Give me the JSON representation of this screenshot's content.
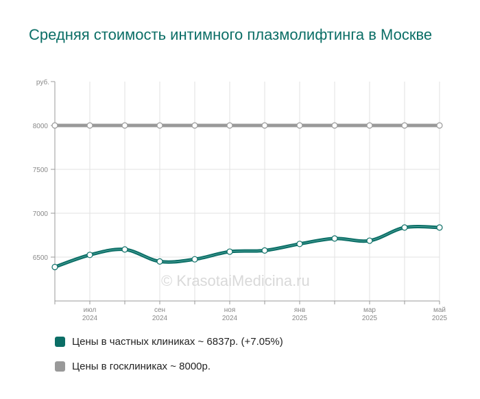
{
  "title": "Средняя стоимость интимного плазмолифтинга в Москве",
  "watermark": "© KrasotaiMedicina.ru",
  "chart_data": {
    "type": "line",
    "title": "Средняя стоимость интимного плазмолифтинга в Москве",
    "ylabel": "руб.",
    "ylim": [
      6000,
      8500
    ],
    "yticks": [
      6500,
      7000,
      7500,
      8000
    ],
    "x_index": [
      0,
      1,
      2,
      3,
      4,
      5,
      6,
      7,
      8,
      9,
      10,
      11
    ],
    "x_tick_labels": [
      {
        "index": 1,
        "month": "июл",
        "year": "2024"
      },
      {
        "index": 3,
        "month": "сен",
        "year": "2024"
      },
      {
        "index": 5,
        "month": "ноя",
        "year": "2024"
      },
      {
        "index": 7,
        "month": "янв",
        "year": "2025"
      },
      {
        "index": 9,
        "month": "мар",
        "year": "2025"
      },
      {
        "index": 11,
        "month": "май",
        "year": "2025"
      }
    ],
    "series": [
      {
        "name": "Цены в частных клиниках ~ 6837р. (+7.05%)",
        "color": "#0b6e66",
        "values": [
          6387,
          6525,
          6587,
          6450,
          6475,
          6562,
          6575,
          6650,
          6712,
          6687,
          6837,
          6837
        ]
      },
      {
        "name": "Цены в госклиниках ~ 8000р.",
        "color": "#999999",
        "values": [
          8000,
          8000,
          8000,
          8000,
          8000,
          8000,
          8000,
          8000,
          8000,
          8000,
          8000,
          8000
        ]
      }
    ],
    "grid": true,
    "legend_position": "bottom-left"
  },
  "legend": {
    "private_label": "Цены в частных клиниках ~ 6837р. (+7.05%)",
    "private_color": "#0b6e66",
    "state_label": "Цены в госклиниках ~ 8000р.",
    "state_color": "#999999"
  }
}
